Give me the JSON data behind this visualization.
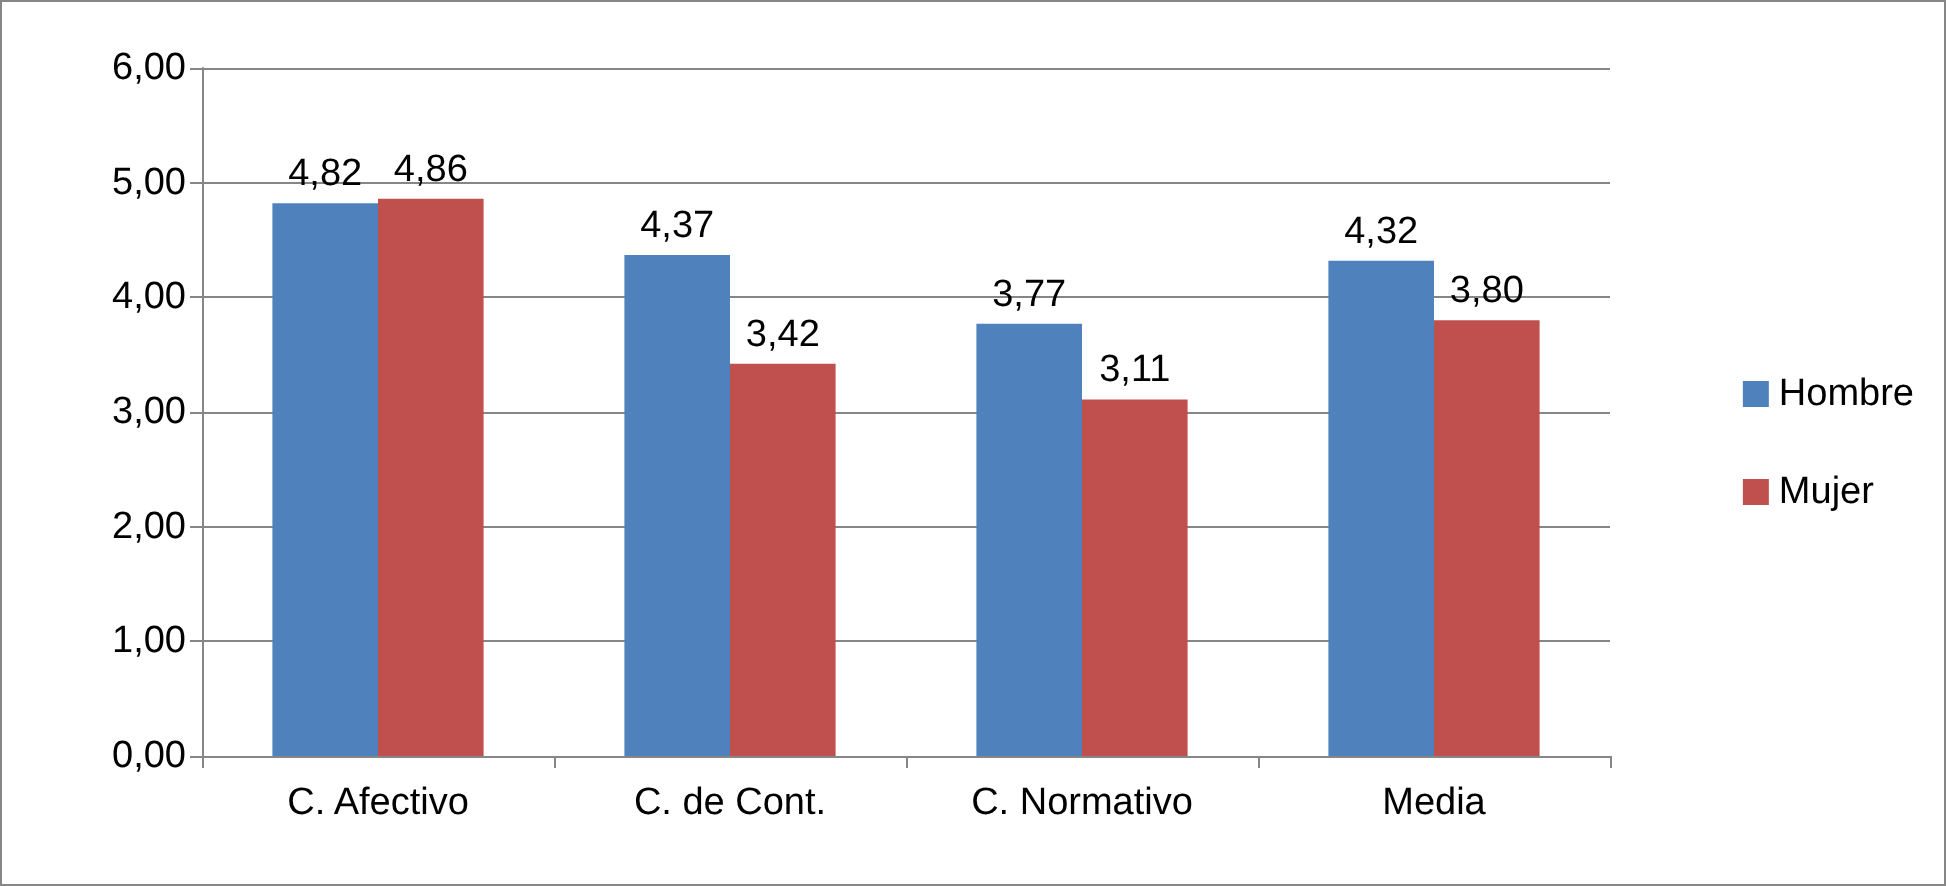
{
  "chart_data": {
    "type": "bar",
    "categories": [
      "C. Afectivo",
      "C. de Cont.",
      "C. Normativo",
      "Media"
    ],
    "series": [
      {
        "name": "Hombre",
        "color": "#4f81bd",
        "values": [
          4.82,
          4.37,
          3.77,
          4.32
        ],
        "value_labels": [
          "4,82",
          "4,37",
          "3,77",
          "4,32"
        ]
      },
      {
        "name": "Mujer",
        "color": "#c0504d",
        "values": [
          4.86,
          3.42,
          3.11,
          3.8
        ],
        "value_labels": [
          "4,86",
          "3,42",
          "3,11",
          "3,80"
        ]
      }
    ],
    "ylim": [
      0,
      6
    ],
    "yticks": [
      {
        "value": 0,
        "label": "0,00"
      },
      {
        "value": 1,
        "label": "1,00"
      },
      {
        "value": 2,
        "label": "2,00"
      },
      {
        "value": 3,
        "label": "3,00"
      },
      {
        "value": 4,
        "label": "4,00"
      },
      {
        "value": 5,
        "label": "5,00"
      },
      {
        "value": 6,
        "label": "6,00"
      }
    ],
    "grid": "y",
    "legend": "right"
  }
}
